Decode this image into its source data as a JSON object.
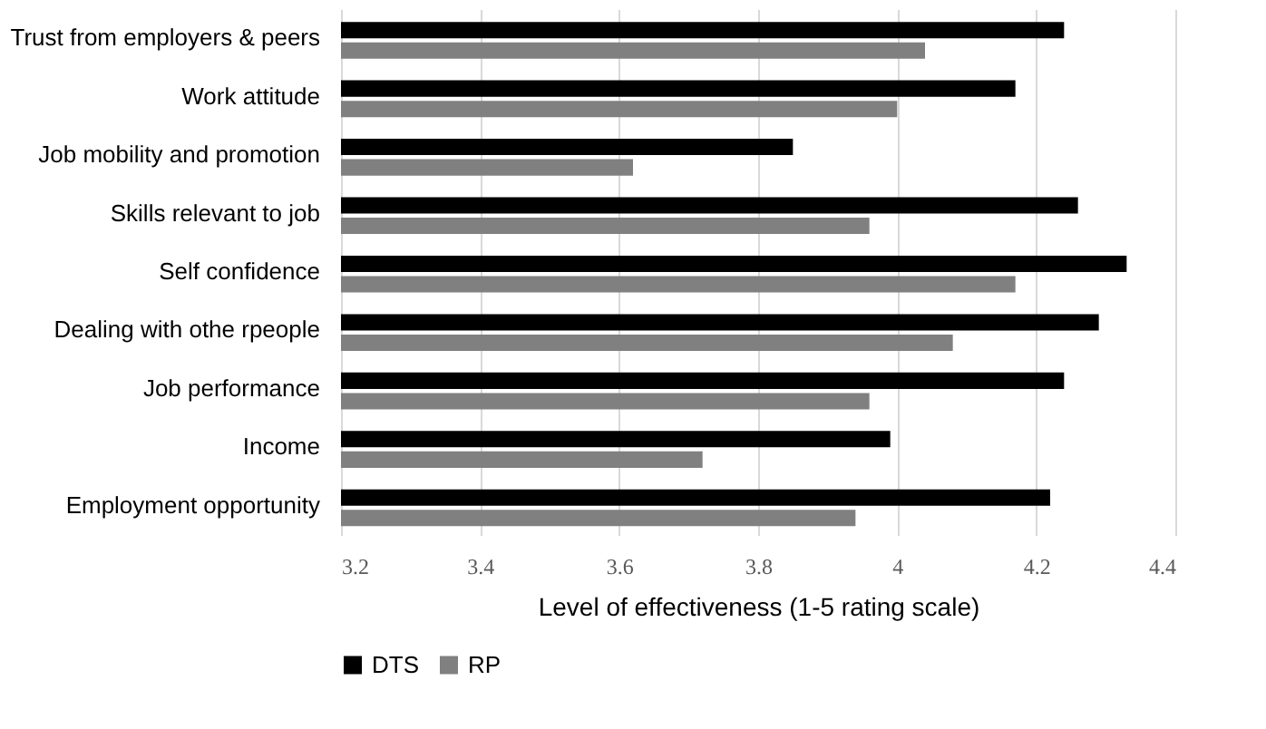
{
  "chart_data": {
    "type": "bar",
    "orientation": "horizontal",
    "xlabel": "Level of effectiveness (1-5 rating scale)",
    "categories": [
      "Trust from employers & peers",
      "Work attitude",
      "Job mobility and promotion",
      "Skills relevant to job",
      "Self confidence",
      "Dealing with othe rpeople",
      "Job performance",
      "Income",
      "Employment opportunity"
    ],
    "series": [
      {
        "name": "DTS",
        "color": "#000000",
        "values": [
          4.24,
          4.17,
          3.85,
          4.26,
          4.33,
          4.29,
          4.24,
          3.99,
          4.22
        ]
      },
      {
        "name": "RP",
        "color": "#808080",
        "values": [
          4.04,
          4.0,
          3.62,
          3.96,
          4.17,
          4.08,
          3.96,
          3.72,
          3.94
        ]
      }
    ],
    "xlim": [
      3.2,
      4.4
    ],
    "xticks": [
      3.2,
      3.4,
      3.6,
      3.8,
      4,
      4.2,
      4.4
    ],
    "grid": "x",
    "legend": "bottom"
  }
}
